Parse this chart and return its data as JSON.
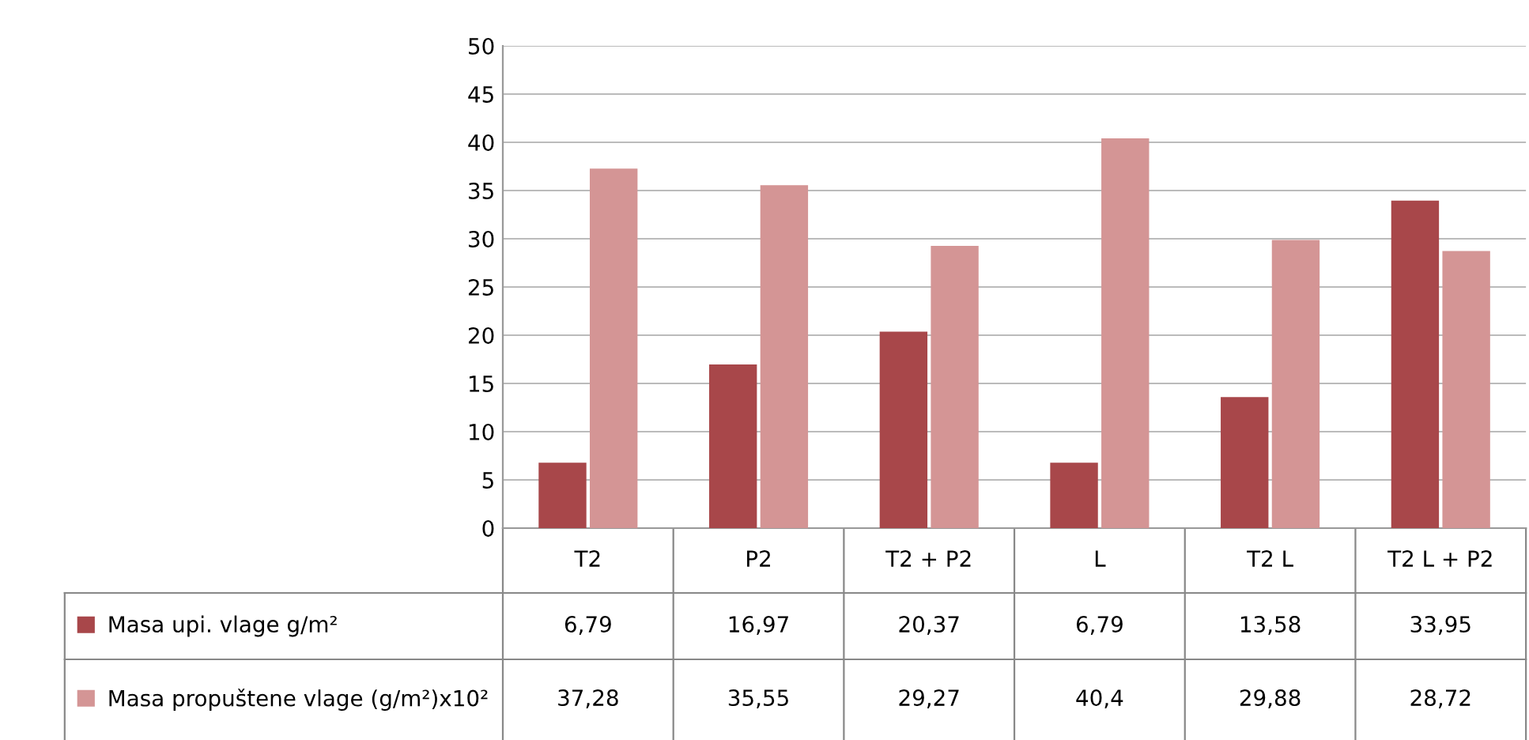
{
  "chart_data": {
    "type": "bar",
    "categories": [
      "T2",
      "P2",
      "T2 + P2",
      "L",
      "T2 L",
      "T2 L + P2"
    ],
    "series": [
      {
        "name": "Masa upi. vlage g/m²",
        "color": "#a8474a",
        "values": [
          6.79,
          16.97,
          20.37,
          6.79,
          13.58,
          33.95
        ],
        "value_labels": [
          "6,79",
          "16,97",
          "20,37",
          "6,79",
          "13,58",
          "33,95"
        ]
      },
      {
        "name": "Masa propuštene vlage (g/m²)x10²",
        "color": "#d49595",
        "values": [
          37.28,
          35.55,
          29.27,
          40.4,
          29.88,
          28.72
        ],
        "value_labels": [
          "37,28",
          "35,55",
          "29,27",
          "40,4",
          "29,88",
          "28,72"
        ]
      }
    ],
    "ylim": [
      0,
      50
    ],
    "yticks": [
      0,
      5,
      10,
      15,
      20,
      25,
      30,
      35,
      40,
      45,
      50
    ],
    "grid": "y",
    "legend": "bottom left"
  }
}
